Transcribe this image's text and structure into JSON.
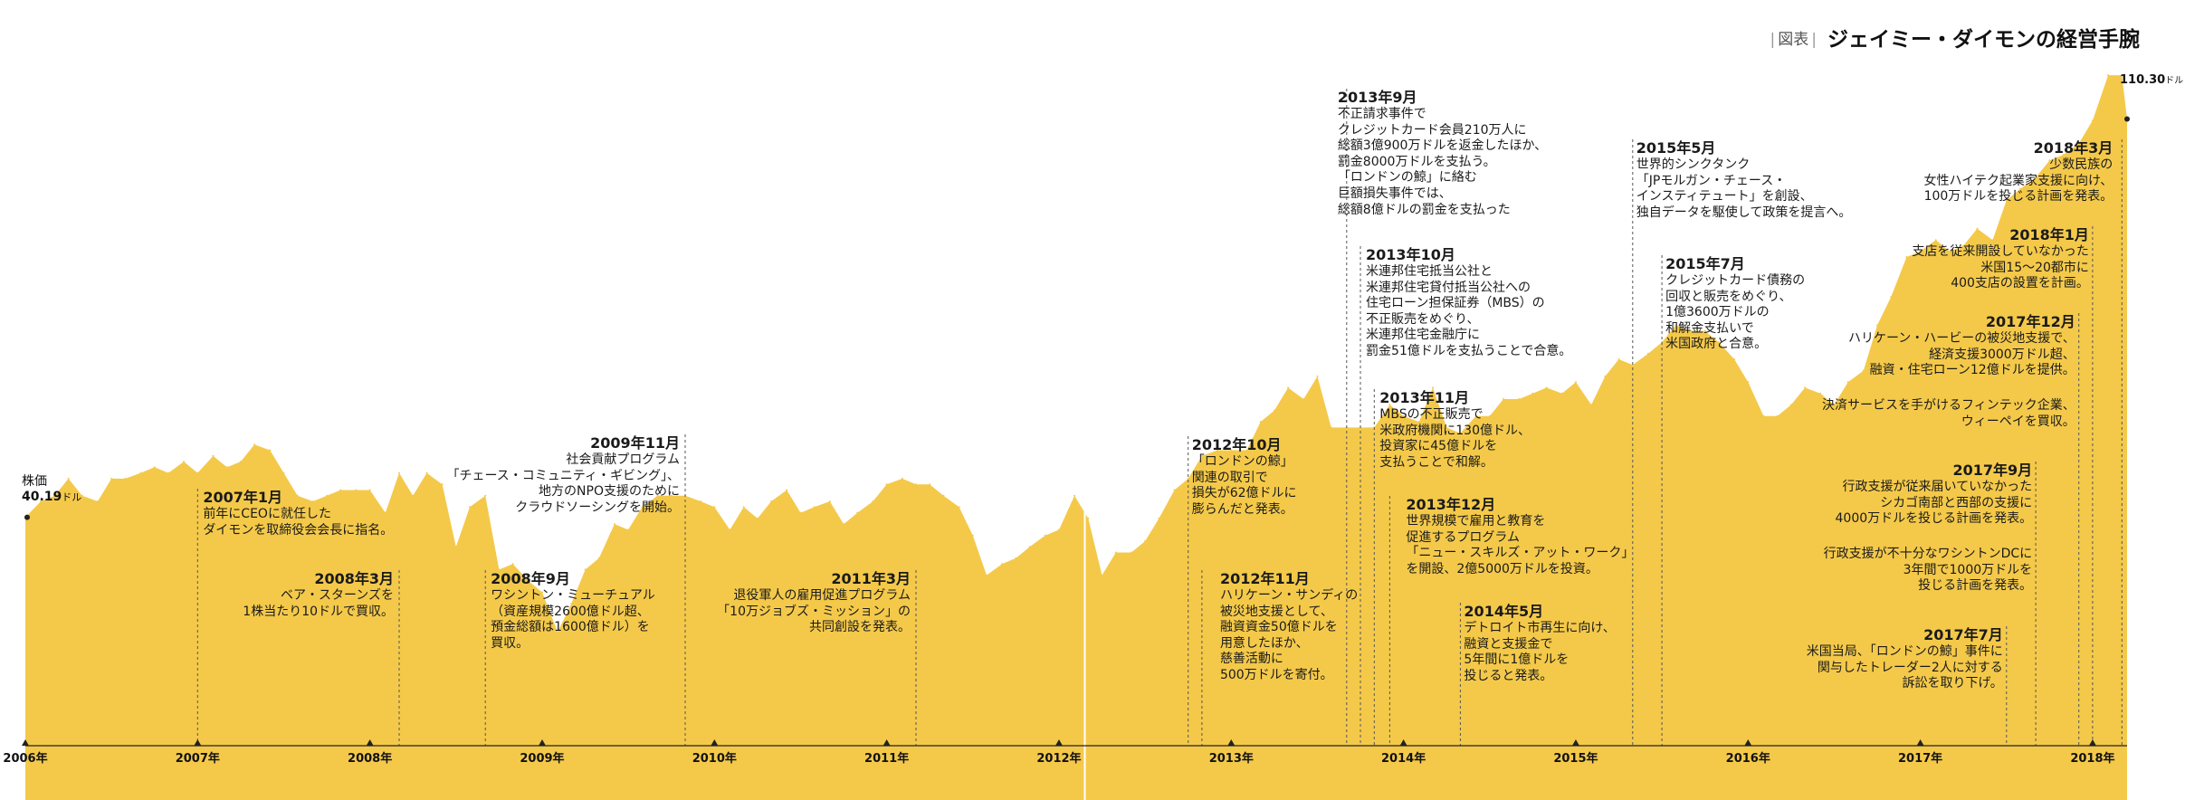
{
  "header": {
    "tag": "図表",
    "title": "ジェイミー・ダイモンの経営手腕"
  },
  "start_label": {
    "name": "株価",
    "value": "40.19",
    "unit": "ドル"
  },
  "end_label": {
    "value": "110.30",
    "unit": "ドル"
  },
  "colors": {
    "area": "#F4C94A",
    "axis": "#222222",
    "guide": "#555555",
    "text": "#1a1a1a"
  },
  "chart_data": {
    "type": "area",
    "title": "ジェイミー・ダイモンの経営手腕",
    "ylabel": "株価",
    "xlabel": "",
    "xlim": [
      2006.0,
      2018.2
    ],
    "ylim": [
      0,
      122
    ],
    "grid": false,
    "legend": "none",
    "x_ticks": [
      {
        "x": 2006,
        "label": "2006年"
      },
      {
        "x": 2007,
        "label": "2007年"
      },
      {
        "x": 2008,
        "label": "2008年"
      },
      {
        "x": 2009,
        "label": "2009年"
      },
      {
        "x": 2010,
        "label": "2010年"
      },
      {
        "x": 2011,
        "label": "2011年"
      },
      {
        "x": 2012,
        "label": "2012年"
      },
      {
        "x": 2013,
        "label": "2013年"
      },
      {
        "x": 2014,
        "label": "2014年"
      },
      {
        "x": 2015,
        "label": "2015年"
      },
      {
        "x": 2016,
        "label": "2016年"
      },
      {
        "x": 2017,
        "label": "2017年"
      },
      {
        "x": 2018,
        "label": "2018年"
      }
    ],
    "series": [
      {
        "name": "株価",
        "unit": "ドル",
        "x": [
          2006.0,
          2006.09,
          2006.17,
          2006.25,
          2006.33,
          2006.42,
          2006.5,
          2006.58,
          2006.67,
          2006.75,
          2006.83,
          2006.92,
          2007.0,
          2007.09,
          2007.17,
          2007.25,
          2007.33,
          2007.42,
          2007.5,
          2007.58,
          2007.67,
          2007.75,
          2007.83,
          2007.92,
          2008.0,
          2008.09,
          2008.17,
          2008.25,
          2008.33,
          2008.42,
          2008.5,
          2008.58,
          2008.67,
          2008.75,
          2008.83,
          2008.92,
          2009.0,
          2009.09,
          2009.17,
          2009.25,
          2009.33,
          2009.42,
          2009.5,
          2009.58,
          2009.67,
          2009.75,
          2009.83,
          2009.92,
          2010.0,
          2010.09,
          2010.17,
          2010.25,
          2010.33,
          2010.42,
          2010.5,
          2010.58,
          2010.67,
          2010.75,
          2010.83,
          2010.92,
          2011.0,
          2011.09,
          2011.17,
          2011.25,
          2011.33,
          2011.42,
          2011.5,
          2011.58,
          2011.67,
          2011.75,
          2011.83,
          2011.92,
          2012.0,
          2012.09,
          2012.17,
          2012.25,
          2012.33,
          2012.42,
          2012.5,
          2012.58,
          2012.67,
          2012.75,
          2012.83,
          2012.92,
          2013.0,
          2013.09,
          2013.17,
          2013.25,
          2013.33,
          2013.42,
          2013.5,
          2013.58,
          2013.67,
          2013.75,
          2013.83,
          2013.92,
          2014.0,
          2014.09,
          2014.17,
          2014.25,
          2014.33,
          2014.42,
          2014.5,
          2014.58,
          2014.67,
          2014.75,
          2014.83,
          2014.92,
          2015.0,
          2015.09,
          2015.17,
          2015.25,
          2015.33,
          2015.42,
          2015.5,
          2015.58,
          2015.67,
          2015.75,
          2015.83,
          2015.92,
          2016.0,
          2016.09,
          2016.17,
          2016.25,
          2016.33,
          2016.42,
          2016.5,
          2016.58,
          2016.67,
          2016.75,
          2016.83,
          2016.92,
          2017.0,
          2017.09,
          2017.17,
          2017.25,
          2017.33,
          2017.42,
          2017.5,
          2017.58,
          2017.67,
          2017.75,
          2017.83,
          2017.92,
          2018.0,
          2018.09,
          2018.17,
          2018.2
        ],
        "values": [
          40.2,
          43,
          44,
          47,
          44,
          43,
          47,
          47,
          48,
          49,
          48,
          50,
          48,
          51,
          49,
          50,
          53,
          52,
          48,
          44,
          43,
          44,
          45,
          45,
          45,
          41,
          48,
          44,
          48,
          46,
          35,
          42,
          44,
          31,
          32,
          29,
          27,
          20,
          25,
          31,
          33,
          39,
          38,
          42,
          44,
          44,
          44,
          43,
          42,
          38,
          42,
          40,
          43,
          45,
          41,
          42,
          43,
          39,
          41,
          43,
          46,
          47,
          46,
          46,
          44,
          42,
          37,
          30,
          32,
          33,
          35,
          37,
          38,
          44,
          40,
          30,
          34,
          34,
          36,
          40,
          45,
          47,
          51,
          52,
          52,
          52,
          57,
          59,
          63,
          61,
          65,
          56,
          56,
          56,
          56,
          60,
          58,
          57,
          63,
          56,
          55,
          58,
          58,
          61,
          61,
          62,
          63,
          62,
          64,
          60,
          65,
          68,
          67,
          69,
          71,
          74,
          73,
          73,
          71,
          68,
          64,
          58,
          58,
          60,
          63,
          62,
          60,
          64,
          66,
          74,
          79,
          86,
          87,
          89,
          87,
          88,
          91,
          89,
          96,
          98,
          100,
          103,
          104,
          106,
          110,
          118,
          118,
          110.3
        ],
        "start": {
          "date": "2006年",
          "value": 40.19
        },
        "end": {
          "date": "2018年3月",
          "value": 110.3
        }
      }
    ],
    "annotations": [
      {
        "x": 2007.0,
        "date": "2007年1月",
        "lines": [
          "前年にCEOに就任した",
          "ダイモンを取締役会会長に指名。"
        ]
      },
      {
        "x": 2008.17,
        "date": "2008年3月",
        "lines": [
          "ベア・スターンズを",
          "1株当たり10ドルで買収。"
        ]
      },
      {
        "x": 2008.67,
        "date": "2008年9月",
        "lines": [
          "ワシントン・ミューチュアル",
          "（資産規模2600億ドル超、",
          "預金総額は1600億ドル）を",
          "買収。"
        ]
      },
      {
        "x": 2009.83,
        "date": "2009年11月",
        "lines": [
          "社会貢献プログラム",
          "「チェース・コミュニティ・ギビング」、",
          "地方のNPO支援のために",
          "クラウドソーシングを開始。"
        ]
      },
      {
        "x": 2011.17,
        "date": "2011年3月",
        "lines": [
          "退役軍人の雇用促進プログラム",
          "「10万ジョブズ・ミッション」の",
          "共同創設を発表。"
        ]
      },
      {
        "x": 2012.75,
        "date": "2012年10月",
        "lines": [
          "「ロンドンの鯨」",
          "関連の取引で",
          "損失が62億ドルに",
          "膨らんだと発表。"
        ]
      },
      {
        "x": 2012.83,
        "date": "2012年11月",
        "lines": [
          "ハリケーン・サンディの",
          "被災地支援として、",
          "融資資金50億ドルを",
          "用意したほか、",
          "慈善活動に",
          "500万ドルを寄付。"
        ]
      },
      {
        "x": 2013.67,
        "date": "2013年9月",
        "lines": [
          "不正請求事件で",
          "クレジットカード会員210万人に",
          "総額3億900万ドルを返金したほか、",
          "罰金8000万ドルを支払う。",
          "「ロンドンの鯨」に絡む",
          "巨額損失事件では、",
          "総額8億ドルの罰金を支払った"
        ]
      },
      {
        "x": 2013.75,
        "date": "2013年10月",
        "lines": [
          "米連邦住宅抵当公社と",
          "米連邦住宅貸付抵当公社への",
          "住宅ローン担保証券（MBS）の",
          "不正販売をめぐり、",
          "米連邦住宅金融庁に",
          "罰金51億ドルを支払うことで合意。"
        ]
      },
      {
        "x": 2013.83,
        "date": "2013年11月",
        "lines": [
          "MBSの不正販売で",
          "米政府機関に130億ドル、",
          "投資家に45億ドルを",
          "支払うことで和解。"
        ]
      },
      {
        "x": 2013.92,
        "date": "2013年12月",
        "lines": [
          "世界規模で雇用と教育を",
          "促進するプログラム",
          "「ニュー・スキルズ・アット・ワーク」",
          "を開設、2億5000万ドルを投資。"
        ]
      },
      {
        "x": 2014.33,
        "date": "2014年5月",
        "lines": [
          "デトロイト市再生に向け、",
          "融資と支援金で",
          "5年間に1億ドルを",
          "投じると発表。"
        ]
      },
      {
        "x": 2015.33,
        "date": "2015年5月",
        "lines": [
          "世界的シンクタンク",
          "「JPモルガン・チェース・",
          "インスティテュート」を創設、",
          "独自データを駆使して政策を提言へ。"
        ]
      },
      {
        "x": 2015.5,
        "date": "2015年7月",
        "lines": [
          "クレジットカード債務の",
          "回収と販売をめぐり、",
          "1億3600万ドルの",
          "和解金支払いで",
          "米国政府と合意。"
        ]
      },
      {
        "x": 2017.5,
        "date": "2017年7月",
        "lines": [
          "米国当局、「ロンドンの鯨」事件に",
          "関与したトレーダー2人に対する",
          "訴訟を取り下げ。"
        ]
      },
      {
        "x": 2017.67,
        "date": "2017年9月",
        "lines": [
          "行政支援が従来届いていなかった",
          "シカゴ南部と西部の支援に",
          "4000万ドルを投じる計画を発表。"
        ],
        "extra": [
          "行政支援が不十分なワシントンDCに",
          "3年間で1000万ドルを",
          "投じる計画を発表。"
        ]
      },
      {
        "x": 2017.92,
        "date": "2017年12月",
        "lines": [
          "ハリケーン・ハービーの被災地支援で、",
          "経済支援3000万ドル超、",
          "融資・住宅ローン12億ドルを提供。"
        ],
        "extra": [
          "決済サービスを手がけるフィンテック企業、",
          "ウィーペイを買収。"
        ]
      },
      {
        "x": 2018.0,
        "date": "2018年1月",
        "lines": [
          "支店を従来開設していなかった",
          "米国15～20都市に",
          "400支店の設置を計画。"
        ]
      },
      {
        "x": 2018.17,
        "date": "2018年3月",
        "lines": [
          "少数民族の",
          "女性ハイテク起業家支援に向け、",
          "100万ドルを投じる計画を発表。"
        ]
      }
    ]
  }
}
